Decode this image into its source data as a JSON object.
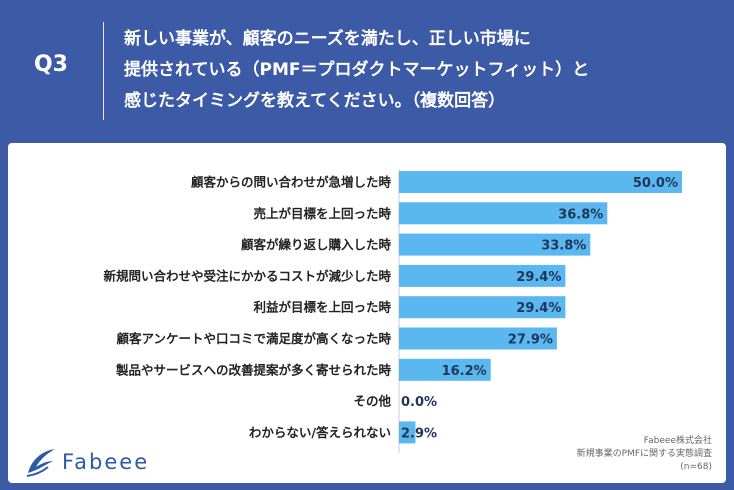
{
  "header": {
    "q_number": "Q3",
    "question": "新しい事業が、顧客のニーズを満たし、正しい市場に\n提供されている（PMF＝プロダクトマーケットフィット）と\n感じたタイミングを教えてください。（複数回答）"
  },
  "colors": {
    "background": "#3d5aa6",
    "bar": "#5bb7f0",
    "value_text": "#1f3559"
  },
  "chart_data": {
    "type": "bar",
    "orientation": "horizontal",
    "categories": [
      "顧客からの問い合わせが急増した時",
      "売上が目標を上回った時",
      "顧客が繰り返し購入した時",
      "新規問い合わせや受注にかかるコストが減少した時",
      "利益が目標を上回った時",
      "顧客アンケートや口コミで満足度が高くなった時",
      "製品やサービスへの改善提案が多く寄せられた時",
      "その他",
      "わからない/答えられない"
    ],
    "values": [
      50.0,
      36.8,
      33.8,
      29.4,
      29.4,
      27.9,
      16.2,
      0.0,
      2.9
    ],
    "value_labels": [
      "50.0%",
      "36.8%",
      "33.8%",
      "29.4%",
      "29.4%",
      "27.9%",
      "16.2%",
      "0.0%",
      "2.9%"
    ],
    "xlim": [
      0,
      50
    ],
    "grid": false,
    "legend": "none"
  },
  "logo": {
    "text": "Fabeee"
  },
  "source": {
    "line1": "Fabeee株式会社",
    "line2": "新規事業のPMFに関する実態調査",
    "line3": "(n=68)"
  }
}
